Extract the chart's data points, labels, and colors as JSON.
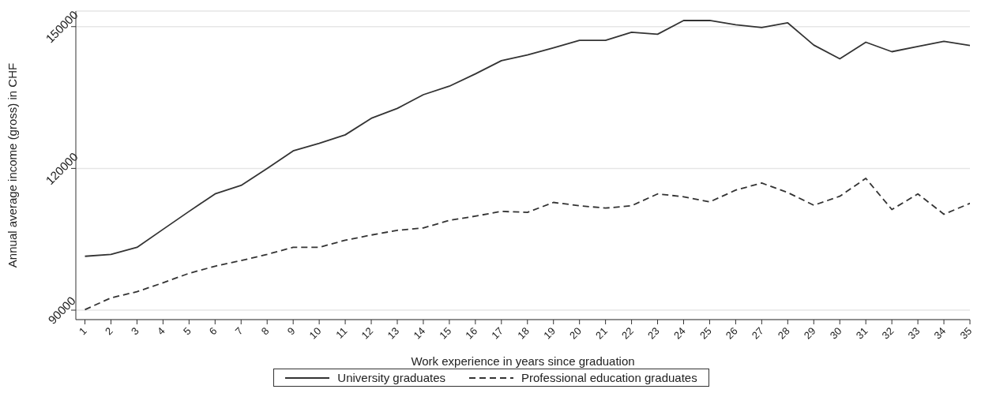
{
  "chart_data": {
    "type": "line",
    "xlabel": "Work experience in years since graduation",
    "ylabel": "Annual average income (gross) in CHF",
    "x": [
      1,
      2,
      3,
      4,
      5,
      6,
      7,
      8,
      9,
      10,
      11,
      12,
      13,
      14,
      15,
      16,
      17,
      18,
      19,
      20,
      21,
      22,
      23,
      24,
      25,
      26,
      27,
      28,
      29,
      30,
      31,
      32,
      33,
      34,
      35
    ],
    "series": [
      {
        "name": "University graduates",
        "color": "#333333",
        "line_style": "solid",
        "values": [
          101400,
          101800,
          103300,
          107100,
          110900,
          114600,
          116400,
          120000,
          123700,
          125300,
          127100,
          130600,
          132700,
          135600,
          137400,
          140000,
          142800,
          144000,
          145500,
          147100,
          147100,
          148800,
          148400,
          151300,
          151300,
          150400,
          149800,
          150800,
          146100,
          143200,
          146700,
          144700,
          145800,
          146900,
          146000
        ]
      },
      {
        "name": "Professional education graduates",
        "color": "#333333",
        "line_style": "dashed",
        "values": [
          90100,
          92600,
          93900,
          95800,
          97800,
          99300,
          100500,
          101800,
          103300,
          103300,
          104800,
          105900,
          106900,
          107400,
          109000,
          109900,
          110900,
          110700,
          112800,
          112100,
          111600,
          112100,
          114600,
          114000,
          112900,
          115400,
          116900,
          114900,
          112200,
          114100,
          117900,
          111300,
          114600,
          110300,
          112600
        ]
      }
    ],
    "xlim": [
      0.65,
      35
    ],
    "xticks": [
      1,
      2,
      3,
      4,
      5,
      6,
      7,
      8,
      9,
      10,
      11,
      12,
      13,
      14,
      15,
      16,
      17,
      18,
      19,
      20,
      21,
      22,
      23,
      24,
      25,
      26,
      27,
      28,
      29,
      30,
      31,
      32,
      33,
      34,
      35
    ],
    "ylim": [
      88000,
      153300
    ],
    "yticks": [
      90000,
      120000,
      150000
    ],
    "grid": "y",
    "legend": "bottom",
    "marker": "none"
  }
}
